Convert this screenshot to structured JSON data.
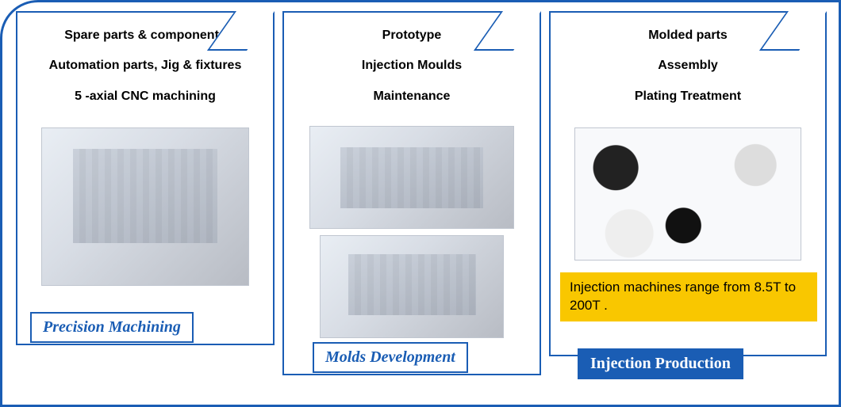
{
  "frame_border_color": "#1a5db4",
  "panels": [
    {
      "id": "precision-machining",
      "bullets": [
        "Spare parts & components",
        "Automation parts, Jig & fixtures",
        "5 -axial CNC machining"
      ],
      "caption": "Precision Machining",
      "caption_bg": "#ffffff",
      "caption_color": "#1a5db4"
    },
    {
      "id": "molds-development",
      "bullets": [
        "Prototype",
        "Injection Moulds",
        "Maintenance"
      ],
      "caption": "Molds Development",
      "caption_bg": "#ffffff",
      "caption_color": "#1a5db4"
    },
    {
      "id": "injection-production",
      "bullets": [
        "Molded parts",
        "Assembly",
        "Plating Treatment"
      ],
      "caption": "Injection  Production",
      "caption_bg": "#1a5db4",
      "caption_color": "#ffffff",
      "note": "Injection machines range from 8.5T to 200T ."
    }
  ],
  "note_bg": "#f9c700",
  "body_font": "Arial",
  "caption_font": "Times New Roman",
  "bullet_fontsize_pt": 12,
  "caption_fontsize_pt": 15
}
